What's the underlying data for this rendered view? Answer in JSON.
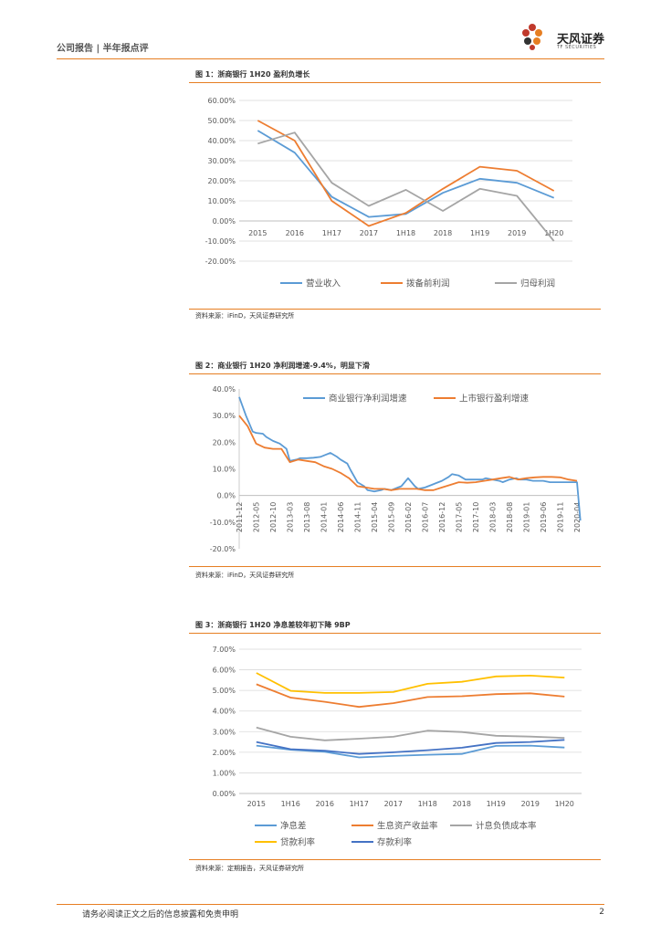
{
  "header": {
    "left": "公司报告 | 半年报点评"
  },
  "logo": {
    "name": "天风证券",
    "sub": "TF SECURITIES"
  },
  "footer": {
    "disclaimer": "请务必阅读正文之后的信息披露和免责申明",
    "page": "2"
  },
  "colors": {
    "blue": "#5B9BD5",
    "orange": "#ED7D31",
    "gray": "#A5A5A5",
    "yellow": "#FFC000",
    "darkblue": "#4472C4",
    "accent": "#E67E22"
  },
  "chart_data": [
    {
      "title": "图 1：浙商银行 1H20 盈利负增长",
      "source": "资料来源：iFinD，天风证券研究所",
      "type": "line",
      "categories": [
        "2015",
        "2016",
        "1H17",
        "2017",
        "1H18",
        "2018",
        "1H19",
        "2019",
        "1H20"
      ],
      "ylim": [
        -20,
        60
      ],
      "yticks": [
        "60.00%",
        "50.00%",
        "40.00%",
        "30.00%",
        "20.00%",
        "10.00%",
        "0.00%",
        "-10.00%",
        "-20.00%"
      ],
      "series": [
        {
          "name": "营业收入",
          "color": "#5B9BD5",
          "values": [
            45,
            34,
            12,
            2,
            3.5,
            14,
            21,
            19,
            11.5
          ]
        },
        {
          "name": "拨备前利润",
          "color": "#ED7D31",
          "values": [
            50,
            40,
            10,
            -2.5,
            4,
            16,
            27,
            25,
            15
          ]
        },
        {
          "name": "归母利润",
          "color": "#A5A5A5",
          "values": [
            38.5,
            44,
            19,
            7.5,
            15.5,
            5,
            16,
            12.5,
            -10
          ]
        }
      ]
    },
    {
      "title": "图 2：商业银行 1H20 净利润增速-9.4%，明显下滑",
      "source": "资料来源：iFinD，天风证券研究所",
      "type": "line",
      "categories": [
        "2011-12",
        "2012-05",
        "2012-10",
        "2013-03",
        "2013-08",
        "2014-01",
        "2014-06",
        "2014-11",
        "2015-04",
        "2015-09",
        "2016-02",
        "2016-07",
        "2016-12",
        "2017-05",
        "2017-10",
        "2018-03",
        "2018-08",
        "2019-01",
        "2019-06",
        "2019-11",
        "2020-04"
      ],
      "ylim": [
        -20,
        40
      ],
      "yticks": [
        "40.0%",
        "30.0%",
        "20.0%",
        "10.0%",
        "0.0%",
        "-10.0%",
        "-20.0%"
      ],
      "series": [
        {
          "name": "商业银行净利润增速",
          "color": "#5B9BD5",
          "x": [
            0,
            0.4,
            0.8,
            1,
            1.4,
            1.6,
            2,
            2.4,
            2.8,
            3,
            3.4,
            3.6,
            4,
            4.4,
            4.8,
            5,
            5.4,
            5.8,
            6,
            6.4,
            6.6,
            7,
            7.4,
            7.6,
            8,
            8.4,
            8.6,
            9,
            9.4,
            9.6,
            10,
            10.4,
            10.6,
            11,
            11.4,
            11.6,
            12,
            12.4,
            12.6,
            13,
            13.4,
            13.6,
            14,
            14.4,
            14.6,
            15,
            15.4,
            15.6,
            16,
            16.4,
            16.6,
            17,
            17.4,
            17.6,
            18,
            18.4,
            18.6,
            19,
            19.4,
            19.6,
            20,
            20.2
          ],
          "values": [
            37,
            30,
            24,
            23.5,
            23.2,
            22,
            20.5,
            19.5,
            17.5,
            13,
            13.5,
            14,
            14,
            14.2,
            14.5,
            15,
            16,
            14.5,
            13.5,
            12,
            9.5,
            5,
            3.5,
            2,
            1.5,
            2,
            2.5,
            2,
            3,
            3.5,
            6.5,
            3.5,
            2.5,
            3,
            4,
            4.5,
            5.5,
            7,
            8,
            7.5,
            6,
            6,
            6,
            6,
            6.5,
            6,
            5.5,
            5,
            6,
            6.5,
            6,
            6,
            5.5,
            5.5,
            5.5,
            5,
            5,
            5,
            5,
            5,
            5,
            -9.4
          ]
        },
        {
          "name": "上市银行盈利增速",
          "color": "#ED7D31",
          "x": [
            0,
            0.5,
            1,
            1.5,
            2,
            2.5,
            3,
            3.5,
            4,
            4.5,
            5,
            5.5,
            6,
            6.5,
            7,
            7.5,
            8,
            8.5,
            9,
            9.5,
            10,
            10.5,
            11,
            11.5,
            12,
            12.5,
            13,
            13.5,
            14,
            14.5,
            15,
            15.5,
            16,
            16.5,
            17,
            17.5,
            18,
            18.5,
            19,
            19.5,
            20
          ],
          "values": [
            30,
            26,
            19.5,
            18,
            17.5,
            17.5,
            12.5,
            13.5,
            13,
            12.5,
            11,
            10,
            8.5,
            6.5,
            3.5,
            3,
            2.5,
            2.5,
            2,
            2.5,
            2.5,
            2.5,
            2,
            2,
            3,
            4,
            5,
            4.8,
            5,
            5.5,
            6,
            6.5,
            7,
            6,
            6.5,
            6.8,
            7,
            7,
            6.8,
            6,
            5.5
          ]
        }
      ]
    },
    {
      "title": "图 3：浙商银行 1H20 净息差较年初下降 9BP",
      "source": "资料来源：定期报告，天风证券研究所",
      "type": "line",
      "categories": [
        "2015",
        "1H16",
        "2016",
        "1H17",
        "2017",
        "1H18",
        "2018",
        "1H19",
        "2019",
        "1H20"
      ],
      "ylim": [
        0,
        7
      ],
      "yticks": [
        "7.00%",
        "6.00%",
        "5.00%",
        "4.00%",
        "3.00%",
        "2.00%",
        "1.00%",
        "0.00%"
      ],
      "series": [
        {
          "name": "净息差",
          "color": "#5B9BD5",
          "values": [
            2.32,
            2.12,
            2.02,
            1.75,
            1.82,
            1.88,
            1.92,
            2.31,
            2.32,
            2.23
          ]
        },
        {
          "name": "生息资产收益率",
          "color": "#ED7D31",
          "values": [
            5.3,
            4.65,
            4.45,
            4.2,
            4.38,
            4.68,
            4.72,
            4.82,
            4.86,
            4.7
          ]
        },
        {
          "name": "计息负债成本率",
          "color": "#A5A5A5",
          "values": [
            3.2,
            2.75,
            2.58,
            2.66,
            2.75,
            3.05,
            2.98,
            2.8,
            2.76,
            2.7
          ]
        },
        {
          "name": "贷款利率",
          "color": "#FFC000",
          "values": [
            5.85,
            4.98,
            4.88,
            4.88,
            4.92,
            5.32,
            5.42,
            5.68,
            5.72,
            5.62
          ]
        },
        {
          "name": "存款利率",
          "color": "#4472C4",
          "values": [
            2.5,
            2.15,
            2.08,
            1.92,
            2.0,
            2.1,
            2.22,
            2.45,
            2.5,
            2.6
          ]
        }
      ]
    }
  ]
}
